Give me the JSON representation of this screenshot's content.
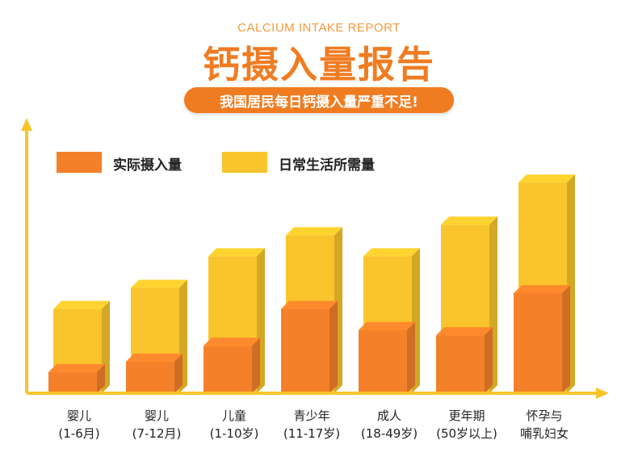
{
  "header": {
    "subtitle_en": "CALCIUM INTAKE REPORT",
    "title": "钙摄入量报告",
    "banner": "我国居民每日钙摄入量严重不足!"
  },
  "colors": {
    "actual": "#f4802a",
    "required": "#f9c42c",
    "axis": "#f9c42c",
    "title": "#f07c22"
  },
  "chart_data": {
    "type": "bar",
    "categories": [
      [
        "婴儿",
        "(1-6月)"
      ],
      [
        "婴儿",
        "(7-12月)"
      ],
      [
        "儿童",
        "(1-10岁)"
      ],
      [
        "青少年",
        "(11-17岁)"
      ],
      [
        "成人",
        "(18-49岁)"
      ],
      [
        "更年期",
        "(50岁以上)"
      ],
      [
        "怀孕与",
        "哺乳妇女"
      ]
    ],
    "series": [
      {
        "name": "实际摄入量",
        "values": [
          2.0,
          3.0,
          4.5,
          8.0,
          6.0,
          5.5,
          9.5
        ]
      },
      {
        "name": "日常生活所需量",
        "values": [
          8.0,
          10.0,
          13.0,
          15.0,
          13.0,
          16.0,
          20.0
        ]
      }
    ],
    "legend": "top-left",
    "grid": false,
    "ylim": [
      0,
      22
    ]
  }
}
